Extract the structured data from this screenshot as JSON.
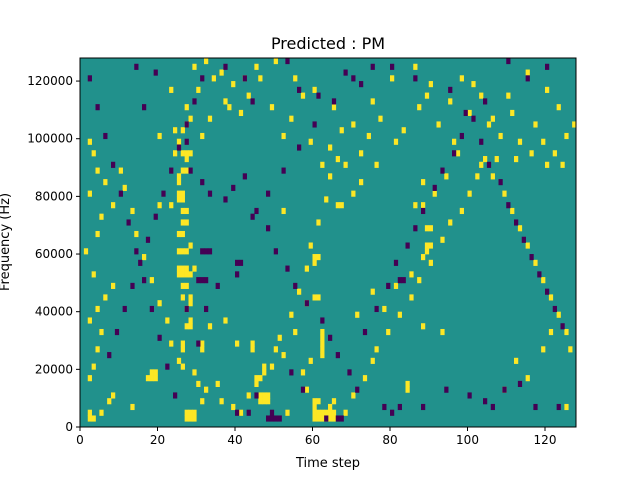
{
  "chart_data": {
    "type": "heatmap",
    "title": "Predicted : PM",
    "xlabel": "Time step",
    "ylabel": "Frequency (Hz)",
    "xlim": [
      0,
      128
    ],
    "ylim": [
      0,
      128000
    ],
    "x_ticks": [
      0,
      20,
      40,
      60,
      80,
      100,
      120
    ],
    "y_ticks": [
      0,
      20000,
      40000,
      60000,
      80000,
      100000,
      120000
    ],
    "x_tick_labels": [
      "0",
      "20",
      "40",
      "60",
      "80",
      "100",
      "120"
    ],
    "y_tick_labels": [
      "0",
      "20000",
      "40000",
      "60000",
      "80000",
      "100000",
      "120000"
    ],
    "colormap": "viridis",
    "value_levels": [
      -1,
      0,
      1
    ],
    "colors": {
      "background": "#21918c",
      "high": "#fde725",
      "low": "#440154"
    },
    "grid": false,
    "rows": 64,
    "cols": 128,
    "cells_high": [
      [
        2,
        1
      ],
      [
        2,
        2
      ],
      [
        27,
        1
      ],
      [
        27,
        2
      ],
      [
        28,
        1
      ],
      [
        28,
        2
      ],
      [
        29,
        1
      ],
      [
        29,
        2
      ],
      [
        60,
        1
      ],
      [
        60,
        2
      ],
      [
        61,
        1
      ],
      [
        61,
        2
      ],
      [
        62,
        1
      ],
      [
        62,
        2
      ],
      [
        63,
        1
      ],
      [
        63,
        2
      ],
      [
        64,
        1
      ],
      [
        64,
        2
      ],
      [
        65,
        1
      ],
      [
        65,
        2
      ],
      [
        46,
        4
      ],
      [
        46,
        5
      ],
      [
        47,
        4
      ],
      [
        47,
        5
      ],
      [
        48,
        4
      ],
      [
        48,
        5
      ],
      [
        60,
        3
      ],
      [
        60,
        4
      ],
      [
        61,
        4
      ],
      [
        64,
        3
      ],
      [
        65,
        4
      ],
      [
        18,
        8
      ],
      [
        18,
        9
      ],
      [
        19,
        8
      ],
      [
        19,
        9
      ],
      [
        30,
        7
      ],
      [
        35,
        7
      ],
      [
        84,
        6
      ],
      [
        84,
        7
      ],
      [
        26,
        14
      ],
      [
        26,
        13
      ],
      [
        31,
        13
      ],
      [
        31,
        14
      ],
      [
        40,
        14
      ],
      [
        62,
        12
      ],
      [
        62,
        13
      ],
      [
        62,
        14
      ],
      [
        62,
        15
      ],
      [
        62,
        16
      ],
      [
        27,
        17
      ],
      [
        28,
        17
      ],
      [
        28,
        18
      ],
      [
        27,
        20
      ],
      [
        28,
        21
      ],
      [
        26,
        22
      ],
      [
        28,
        22
      ],
      [
        26,
        24
      ],
      [
        27,
        24
      ],
      [
        25,
        26
      ],
      [
        25,
        27
      ],
      [
        26,
        26
      ],
      [
        26,
        27
      ],
      [
        27,
        26
      ],
      [
        27,
        27
      ],
      [
        28,
        26
      ],
      [
        29,
        27
      ],
      [
        60,
        29
      ],
      [
        61,
        29
      ],
      [
        60,
        22
      ],
      [
        61,
        22
      ],
      [
        60,
        28
      ],
      [
        25,
        30
      ],
      [
        26,
        30
      ],
      [
        27,
        30
      ],
      [
        28,
        31
      ],
      [
        25,
        33
      ],
      [
        26,
        33
      ],
      [
        89,
        30
      ],
      [
        89,
        31
      ],
      [
        90,
        31
      ],
      [
        26,
        35
      ],
      [
        27,
        35
      ],
      [
        26,
        37
      ],
      [
        27,
        37
      ],
      [
        25,
        39
      ],
      [
        26,
        39
      ],
      [
        66,
        38
      ],
      [
        89,
        34
      ],
      [
        90,
        34
      ],
      [
        25,
        40
      ],
      [
        26,
        40
      ],
      [
        25,
        42
      ],
      [
        25,
        43
      ],
      [
        26,
        44
      ],
      [
        27,
        44
      ],
      [
        27,
        46
      ],
      [
        26,
        47
      ],
      [
        27,
        47
      ],
      [
        28,
        47
      ],
      [
        52,
        37
      ],
      [
        67,
        38
      ],
      [
        86,
        38
      ],
      [
        88,
        38
      ],
      [
        23,
        38
      ],
      [
        20,
        38
      ],
      [
        13,
        3
      ],
      [
        17,
        8
      ],
      [
        58,
        6
      ],
      [
        57,
        9
      ],
      [
        53,
        2
      ],
      [
        59,
        11
      ],
      [
        37,
        18
      ],
      [
        75,
        11
      ],
      [
        88,
        17
      ],
      [
        93,
        16
      ],
      [
        109,
        6
      ],
      [
        112,
        11
      ],
      [
        115,
        8
      ],
      [
        119,
        13
      ],
      [
        121,
        16
      ],
      [
        125,
        3
      ],
      [
        45,
        8
      ],
      [
        46,
        8
      ],
      [
        47,
        9
      ],
      [
        47,
        10
      ],
      [
        26,
        10
      ],
      [
        31,
        4
      ],
      [
        44,
        13
      ],
      [
        44,
        14
      ],
      [
        50,
        13
      ],
      [
        52,
        12
      ],
      [
        33,
        17
      ],
      [
        55,
        16
      ],
      [
        58,
        21
      ],
      [
        71,
        19
      ],
      [
        75,
        23
      ],
      [
        78,
        20
      ],
      [
        81,
        24
      ],
      [
        85,
        26
      ],
      [
        88,
        29
      ],
      [
        70,
        40
      ],
      [
        72,
        42
      ],
      [
        76,
        45
      ],
      [
        88,
        42
      ],
      [
        91,
        40
      ],
      [
        94,
        43
      ],
      [
        97,
        47
      ],
      [
        103,
        45
      ],
      [
        107,
        46
      ],
      [
        112,
        46
      ],
      [
        116,
        47
      ],
      [
        120,
        45
      ],
      [
        124,
        45
      ],
      [
        3,
        1
      ],
      [
        5,
        2
      ],
      [
        7,
        4
      ],
      [
        8,
        5
      ],
      [
        2,
        8
      ],
      [
        3,
        10
      ],
      [
        4,
        13
      ],
      [
        5,
        16
      ],
      [
        2,
        18
      ],
      [
        4,
        20
      ],
      [
        6,
        22
      ],
      [
        8,
        24
      ],
      [
        3,
        26
      ],
      [
        1,
        30
      ],
      [
        4,
        33
      ],
      [
        5,
        36
      ],
      [
        8,
        38
      ],
      [
        2,
        40
      ],
      [
        6,
        42
      ],
      [
        4,
        44
      ],
      [
        3,
        47
      ],
      [
        2,
        49
      ],
      [
        20,
        50
      ],
      [
        24,
        51
      ],
      [
        27,
        52
      ],
      [
        31,
        50
      ],
      [
        33,
        53
      ],
      [
        38,
        55
      ],
      [
        42,
        60
      ],
      [
        45,
        62
      ],
      [
        50,
        63
      ],
      [
        55,
        60
      ],
      [
        60,
        58
      ],
      [
        65,
        55
      ],
      [
        70,
        52
      ],
      [
        75,
        56
      ],
      [
        80,
        60
      ],
      [
        86,
        62
      ],
      [
        90,
        59
      ],
      [
        95,
        56
      ],
      [
        100,
        54
      ],
      [
        105,
        52
      ],
      [
        110,
        57
      ],
      [
        115,
        61
      ],
      [
        120,
        58
      ],
      [
        123,
        55
      ],
      [
        24,
        47
      ],
      [
        27,
        55
      ],
      [
        30,
        58
      ],
      [
        34,
        60
      ],
      [
        37,
        56
      ],
      [
        25,
        49
      ],
      [
        26,
        51
      ],
      [
        28,
        53
      ],
      [
        23,
        58
      ],
      [
        29,
        62
      ],
      [
        32,
        63
      ],
      [
        36,
        61
      ],
      [
        39,
        59
      ],
      [
        41,
        54
      ],
      [
        43,
        57
      ],
      [
        46,
        60
      ],
      [
        49,
        55
      ],
      [
        52,
        50
      ],
      [
        54,
        53
      ],
      [
        57,
        57
      ],
      [
        59,
        49
      ],
      [
        62,
        45
      ],
      [
        64,
        48
      ],
      [
        67,
        51
      ],
      [
        68,
        45
      ],
      [
        72,
        47
      ],
      [
        74,
        50
      ],
      [
        77,
        53
      ],
      [
        81,
        49
      ],
      [
        83,
        51
      ],
      [
        87,
        55
      ],
      [
        89,
        57
      ],
      [
        92,
        52
      ],
      [
        96,
        49
      ],
      [
        98,
        60
      ],
      [
        101,
        59
      ],
      [
        103,
        57
      ],
      [
        106,
        53
      ],
      [
        108,
        50
      ],
      [
        111,
        54
      ],
      [
        113,
        49
      ],
      [
        117,
        52
      ],
      [
        119,
        49
      ],
      [
        122,
        47
      ],
      [
        125,
        50
      ],
      [
        127,
        52
      ],
      [
        10,
        44
      ],
      [
        11,
        41
      ],
      [
        13,
        37
      ],
      [
        14,
        33
      ],
      [
        16,
        29
      ],
      [
        18,
        25
      ],
      [
        20,
        21
      ],
      [
        22,
        18
      ],
      [
        23,
        14
      ],
      [
        25,
        11
      ],
      [
        29,
        9
      ],
      [
        32,
        6
      ],
      [
        36,
        4
      ],
      [
        39,
        3
      ],
      [
        41,
        2
      ],
      [
        43,
        5
      ],
      [
        45,
        7
      ],
      [
        49,
        10
      ],
      [
        51,
        15
      ],
      [
        54,
        19
      ],
      [
        56,
        23
      ],
      [
        58,
        27
      ],
      [
        59,
        31
      ],
      [
        61,
        35
      ],
      [
        63,
        39
      ],
      [
        64,
        43
      ],
      [
        66,
        46
      ],
      [
        68,
        2
      ],
      [
        70,
        5
      ],
      [
        73,
        8
      ],
      [
        76,
        13
      ],
      [
        79,
        16
      ],
      [
        82,
        19
      ],
      [
        85,
        22
      ],
      [
        87,
        25
      ],
      [
        90,
        28
      ],
      [
        93,
        32
      ],
      [
        95,
        35
      ],
      [
        98,
        37
      ],
      [
        100,
        40
      ],
      [
        102,
        43
      ],
      [
        104,
        46
      ],
      [
        106,
        43
      ],
      [
        109,
        40
      ],
      [
        111,
        37
      ],
      [
        113,
        34
      ],
      [
        115,
        31
      ],
      [
        117,
        28
      ],
      [
        119,
        25
      ],
      [
        121,
        22
      ],
      [
        123,
        19
      ],
      [
        125,
        16
      ],
      [
        126,
        13
      ]
    ],
    "cells_low": [
      [
        31,
        30
      ],
      [
        32,
        30
      ],
      [
        33,
        30
      ],
      [
        30,
        25
      ],
      [
        31,
        25
      ],
      [
        32,
        25
      ],
      [
        40,
        28
      ],
      [
        41,
        28
      ],
      [
        48,
        1
      ],
      [
        49,
        1
      ],
      [
        50,
        1
      ],
      [
        51,
        1
      ],
      [
        49,
        2
      ],
      [
        63,
        1
      ],
      [
        66,
        1
      ],
      [
        67,
        1
      ],
      [
        82,
        25
      ],
      [
        83,
        25
      ],
      [
        27,
        20
      ],
      [
        40,
        2
      ],
      [
        43,
        2
      ],
      [
        45,
        5
      ],
      [
        54,
        9
      ],
      [
        57,
        6
      ],
      [
        78,
        3
      ],
      [
        80,
        2
      ],
      [
        82,
        3
      ],
      [
        88,
        3
      ],
      [
        94,
        6
      ],
      [
        100,
        5
      ],
      [
        104,
        4
      ],
      [
        106,
        3
      ],
      [
        109,
        6
      ],
      [
        113,
        7
      ],
      [
        117,
        3
      ],
      [
        123,
        3
      ],
      [
        30,
        14
      ],
      [
        32,
        20
      ],
      [
        35,
        24
      ],
      [
        40,
        26
      ],
      [
        44,
        36
      ],
      [
        48,
        40
      ],
      [
        52,
        44
      ],
      [
        56,
        48
      ],
      [
        60,
        52
      ],
      [
        65,
        56
      ],
      [
        70,
        60
      ],
      [
        75,
        62
      ],
      [
        14,
        62
      ],
      [
        19,
        61
      ],
      [
        37,
        62
      ],
      [
        42,
        60
      ],
      [
        44,
        56
      ],
      [
        53,
        63
      ],
      [
        56,
        58
      ],
      [
        61,
        57
      ],
      [
        68,
        61
      ],
      [
        72,
        59
      ],
      [
        80,
        62
      ],
      [
        86,
        60
      ],
      [
        95,
        58
      ],
      [
        99,
        54
      ],
      [
        104,
        56
      ],
      [
        110,
        63
      ],
      [
        115,
        60
      ],
      [
        120,
        62
      ],
      [
        16,
        55
      ],
      [
        27,
        49
      ],
      [
        28,
        44
      ],
      [
        31,
        42
      ],
      [
        33,
        40
      ],
      [
        37,
        39
      ],
      [
        39,
        41
      ],
      [
        42,
        43
      ],
      [
        45,
        37
      ],
      [
        48,
        34
      ],
      [
        50,
        30
      ],
      [
        53,
        27
      ],
      [
        55,
        24
      ],
      [
        58,
        21
      ],
      [
        62,
        18
      ],
      [
        64,
        15
      ],
      [
        66,
        12
      ],
      [
        69,
        9
      ],
      [
        71,
        6
      ],
      [
        73,
        16
      ],
      [
        76,
        20
      ],
      [
        79,
        24
      ],
      [
        81,
        28
      ],
      [
        84,
        31
      ],
      [
        86,
        34
      ],
      [
        88,
        37
      ],
      [
        91,
        41
      ],
      [
        93,
        44
      ],
      [
        96,
        47
      ],
      [
        98,
        50
      ],
      [
        101,
        53
      ],
      [
        103,
        49
      ],
      [
        105,
        45
      ],
      [
        108,
        42
      ],
      [
        110,
        38
      ],
      [
        112,
        35
      ],
      [
        114,
        32
      ],
      [
        116,
        29
      ],
      [
        118,
        26
      ],
      [
        120,
        23
      ],
      [
        122,
        20
      ],
      [
        124,
        17
      ],
      [
        2,
        60
      ],
      [
        4,
        55
      ],
      [
        6,
        50
      ],
      [
        8,
        45
      ],
      [
        10,
        40
      ],
      [
        12,
        35
      ],
      [
        14,
        30
      ],
      [
        16,
        25
      ],
      [
        18,
        20
      ],
      [
        20,
        15
      ],
      [
        22,
        10
      ],
      [
        24,
        5
      ],
      [
        7,
        12
      ],
      [
        9,
        16
      ],
      [
        11,
        20
      ],
      [
        13,
        24
      ],
      [
        15,
        28
      ],
      [
        17,
        32
      ],
      [
        19,
        36
      ],
      [
        21,
        40
      ],
      [
        23,
        44
      ],
      [
        25,
        48
      ],
      [
        27,
        52
      ],
      [
        29,
        56
      ],
      [
        31,
        60
      ]
    ]
  }
}
